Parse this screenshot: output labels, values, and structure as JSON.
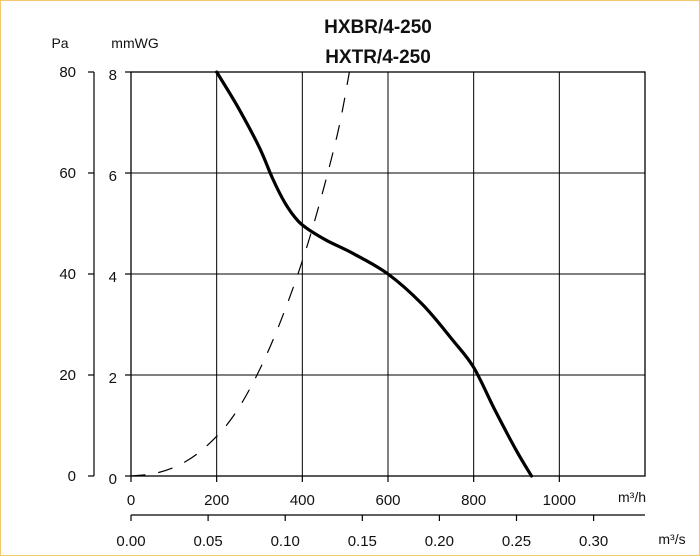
{
  "chart_data": {
    "type": "line",
    "title": [
      "HXBR/4-250",
      "HXTR/4-250"
    ],
    "left_axis": {
      "unit": "Pa",
      "range": [
        0,
        80
      ],
      "ticks": [
        "0",
        "20",
        "40",
        "60",
        "80"
      ]
    },
    "inner_axis": {
      "unit": "mmWG",
      "range": [
        0,
        8
      ],
      "ticks": [
        "0",
        "2",
        "4",
        "6",
        "8"
      ]
    },
    "x_axis_primary": {
      "unit": "m³/h",
      "range": [
        0,
        1200
      ],
      "ticks": [
        "0",
        "200",
        "400",
        "600",
        "800",
        "1000"
      ]
    },
    "x_axis_secondary": {
      "unit": "m³/s",
      "range": [
        0,
        0.3333
      ],
      "ticks": [
        "0.00",
        "0.05",
        "0.10",
        "0.15",
        "0.20",
        "0.25",
        "0.30"
      ]
    },
    "grid": true,
    "series": [
      {
        "style": "solid",
        "x": [
          200,
          250,
          300,
          330,
          360,
          390,
          420,
          460,
          520,
          600,
          680,
          750,
          800,
          850,
          900,
          935
        ],
        "y": [
          80,
          73,
          65,
          59,
          54,
          50.5,
          48.5,
          46.5,
          44,
          40,
          34,
          27,
          21.5,
          13,
          5,
          0
        ]
      },
      {
        "style": "dashed",
        "x": [
          0,
          60,
          120,
          180,
          240,
          300,
          360,
          420,
          480,
          510
        ],
        "y": [
          0,
          0.6,
          2.5,
          6.2,
          12,
          21,
          33,
          48,
          67,
          80
        ]
      }
    ]
  }
}
